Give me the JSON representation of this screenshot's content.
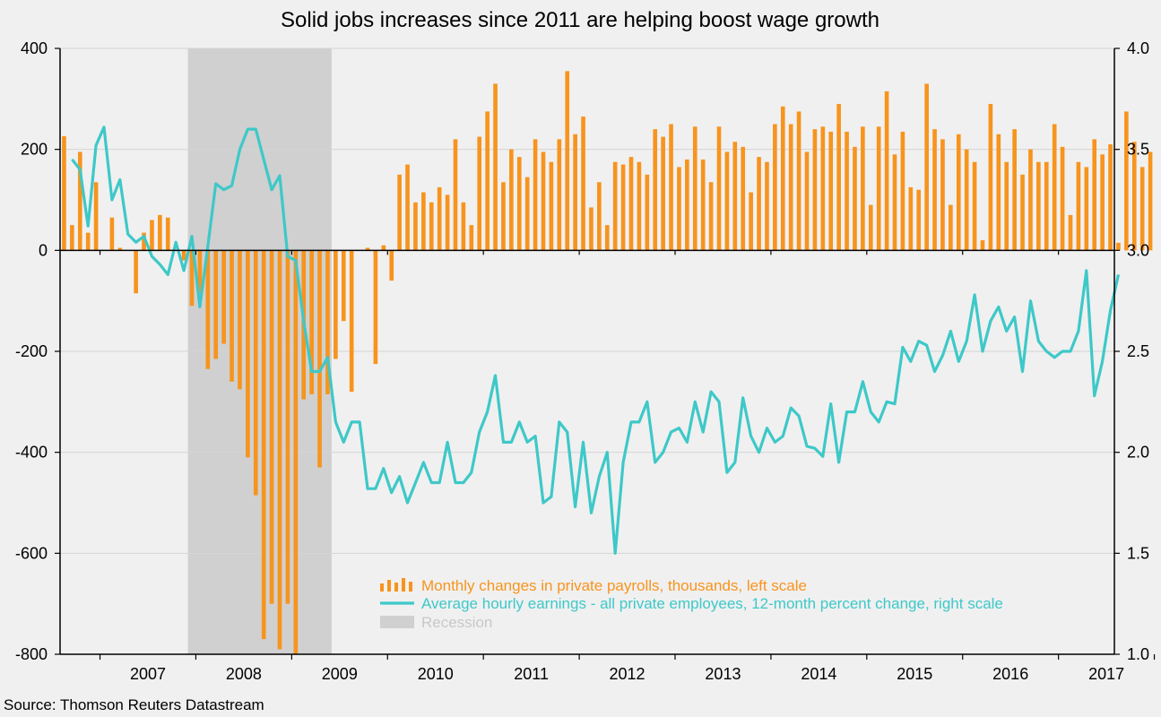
{
  "colors": {
    "background": "#f0f0f0",
    "bars": "#f7941d",
    "line": "#3ec8c8",
    "recession": "#d0d0d0",
    "recession_legend_text": "#c8c8c8",
    "grid": "#d4d4d4"
  },
  "source": "Source: Thomson Reuters Datastream",
  "chart_data": {
    "type": "bar+line",
    "title": "Solid jobs increases since 2011 are helping boost wage growth",
    "x_start": "2006-08",
    "x_end": "2017-08",
    "x_tick_labels": [
      "2007",
      "2008",
      "2009",
      "2010",
      "2011",
      "2012",
      "2013",
      "2014",
      "2015",
      "2016",
      "2017"
    ],
    "left_axis": {
      "min": -800,
      "max": 400,
      "ticks": [
        400,
        200,
        0,
        -200,
        -400,
        -600,
        -800
      ],
      "tick_labels": [
        "400",
        "200",
        "0",
        "-200",
        "-400",
        "-600",
        "-800"
      ]
    },
    "right_axis": {
      "min": 1.0,
      "max": 4.0,
      "ticks": [
        4.0,
        3.5,
        3.0,
        2.5,
        2.0,
        1.5,
        1.0
      ],
      "tick_labels": [
        "4.0",
        "3.5",
        "3.0",
        "2.5",
        "2.0",
        "1.5",
        "1.0"
      ]
    },
    "recession": {
      "start": "2007-12",
      "end": "2009-06"
    },
    "legend": {
      "bars": "Monthly changes in private payrolls, thousands, left scale",
      "line": "Average hourly earnings - all private employees, 12-month percent change, right scale",
      "recession": "Recession"
    },
    "series": [
      {
        "name": "Monthly changes in private payrolls, thousands",
        "type": "bar",
        "axis": "left",
        "start": "2006-08",
        "values": [
          226,
          50,
          195,
          35,
          135,
          0,
          65,
          5,
          0,
          -85,
          35,
          60,
          70,
          65,
          0,
          -20,
          -110,
          -85,
          -235,
          -215,
          -185,
          -260,
          -275,
          -410,
          -485,
          -770,
          -700,
          -790,
          -700,
          -800,
          -295,
          -285,
          -430,
          -285,
          -215,
          -140,
          -280,
          0,
          5,
          -225,
          10,
          -60,
          150,
          170,
          95,
          115,
          95,
          125,
          110,
          220,
          95,
          50,
          225,
          275,
          330,
          135,
          200,
          185,
          145,
          220,
          195,
          175,
          220,
          355,
          230,
          265,
          85,
          135,
          50,
          175,
          170,
          185,
          175,
          150,
          240,
          225,
          250,
          165,
          180,
          245,
          180,
          135,
          245,
          195,
          215,
          205,
          115,
          185,
          175,
          250,
          285,
          250,
          275,
          195,
          240,
          245,
          235,
          290,
          235,
          205,
          245,
          90,
          245,
          315,
          190,
          235,
          125,
          120,
          330,
          240,
          220,
          90,
          230,
          200,
          175,
          20,
          290,
          230,
          175,
          240,
          150,
          200,
          175,
          175,
          250,
          205,
          70,
          175,
          165,
          220,
          190,
          210,
          15,
          275,
          215,
          165,
          195
        ]
      },
      {
        "name": "Average hourly earnings - all private employees, 12-month percent change",
        "type": "line",
        "axis": "right",
        "start": "2006-09",
        "values": [
          3.45,
          3.4,
          3.12,
          3.52,
          3.61,
          3.25,
          3.35,
          3.08,
          3.04,
          3.07,
          2.97,
          2.93,
          2.88,
          3.04,
          2.9,
          3.07,
          2.72,
          3.02,
          3.33,
          3.3,
          3.32,
          3.5,
          3.6,
          3.6,
          3.45,
          3.3,
          3.37,
          2.97,
          2.95,
          2.65,
          2.4,
          2.4,
          2.47,
          2.15,
          2.05,
          2.15,
          2.15,
          1.82,
          1.82,
          1.92,
          1.8,
          1.88,
          1.75,
          1.85,
          1.95,
          1.85,
          1.85,
          2.05,
          1.85,
          1.85,
          1.9,
          2.1,
          2.2,
          2.38,
          2.05,
          2.05,
          2.15,
          2.05,
          2.08,
          1.75,
          1.78,
          2.15,
          2.1,
          1.73,
          2.05,
          1.7,
          1.88,
          2.0,
          1.5,
          1.95,
          2.15,
          2.15,
          2.25,
          1.95,
          2.0,
          2.1,
          2.12,
          2.05,
          2.25,
          2.1,
          2.3,
          2.25,
          1.9,
          1.95,
          2.27,
          2.08,
          2.0,
          2.12,
          2.05,
          2.08,
          2.22,
          2.18,
          2.03,
          2.02,
          1.98,
          2.24,
          1.95,
          2.2,
          2.2,
          2.35,
          2.2,
          2.15,
          2.25,
          2.24,
          2.52,
          2.45,
          2.55,
          2.53,
          2.4,
          2.48,
          2.6,
          2.45,
          2.55,
          2.78,
          2.5,
          2.65,
          2.72,
          2.6,
          2.67,
          2.4,
          2.75,
          2.55,
          2.5,
          2.47,
          2.5,
          2.5,
          2.6,
          2.9,
          2.28,
          2.45,
          2.7,
          2.88
        ]
      }
    ]
  }
}
